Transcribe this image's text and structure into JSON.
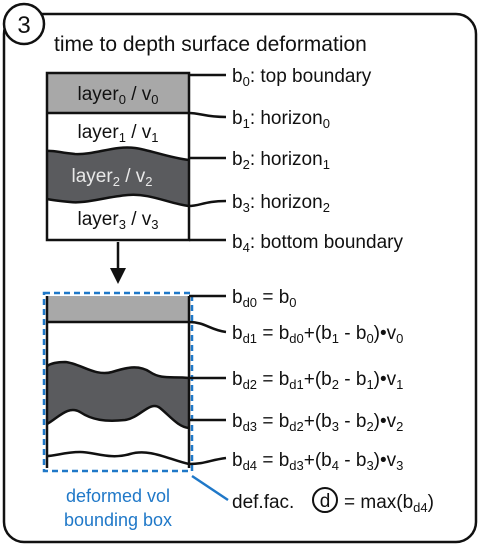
{
  "panel": {
    "number": "3",
    "title": "time to depth surface deformation"
  },
  "layers": [
    {
      "name": "layer",
      "sub": "0",
      "vel": "v",
      "vsub": "0",
      "fill": "#a8a8a8"
    },
    {
      "name": "layer",
      "sub": "1",
      "vel": "v",
      "vsub": "1",
      "fill": "#ffffff"
    },
    {
      "name": "layer",
      "sub": "2",
      "vel": "v",
      "vsub": "2",
      "fill": "#5a5b5e"
    },
    {
      "name": "layer",
      "sub": "3",
      "vel": "v",
      "vsub": "3",
      "fill": "#ffffff"
    }
  ],
  "boundaries": [
    {
      "b": "b",
      "sub": "0",
      "text": ": top boundary",
      "tsub": ""
    },
    {
      "b": "b",
      "sub": "1",
      "text": ": horizon",
      "tsub": "0"
    },
    {
      "b": "b",
      "sub": "2",
      "text": ": horizon",
      "tsub": "1"
    },
    {
      "b": "b",
      "sub": "3",
      "text": ": horizon",
      "tsub": "2"
    },
    {
      "b": "b",
      "sub": "4",
      "text": ": bottom boundary",
      "tsub": ""
    }
  ],
  "equations": [
    {
      "lhs_sub": "d0",
      "rhs": [
        [
          "b",
          "0"
        ]
      ]
    },
    {
      "lhs_sub": "d1",
      "rhs": [
        [
          "b",
          "d0"
        ],
        [
          "+(b",
          "1"
        ],
        [
          " - b",
          "0"
        ],
        [
          ")•v",
          "0"
        ]
      ]
    },
    {
      "lhs_sub": "d2",
      "rhs": [
        [
          "b",
          "d1"
        ],
        [
          "+(b",
          "2"
        ],
        [
          " - b",
          "1"
        ],
        [
          ")•v",
          "1"
        ]
      ]
    },
    {
      "lhs_sub": "d3",
      "rhs": [
        [
          "b",
          "d2"
        ],
        [
          "+(b",
          "3"
        ],
        [
          " - b",
          "2"
        ],
        [
          ")•v",
          "2"
        ]
      ]
    },
    {
      "lhs_sub": "d4",
      "rhs": [
        [
          "b",
          "d3"
        ],
        [
          "+(b",
          "4"
        ],
        [
          " - b",
          "3"
        ],
        [
          ")•v",
          "3"
        ]
      ]
    }
  ],
  "deformed_box_label": [
    "deformed vol",
    "bounding box"
  ],
  "deformation_factor": {
    "prefix": "def.fac.",
    "symbol": "d",
    "rhs": "= max(b",
    "rhs_sub": "d4",
    "rhs_end": ")"
  },
  "colors": {
    "light_gray": "#a8a8a8",
    "dark_gray": "#5a5b5e",
    "accent_blue": "#1f78c8",
    "stroke": "#111111"
  }
}
